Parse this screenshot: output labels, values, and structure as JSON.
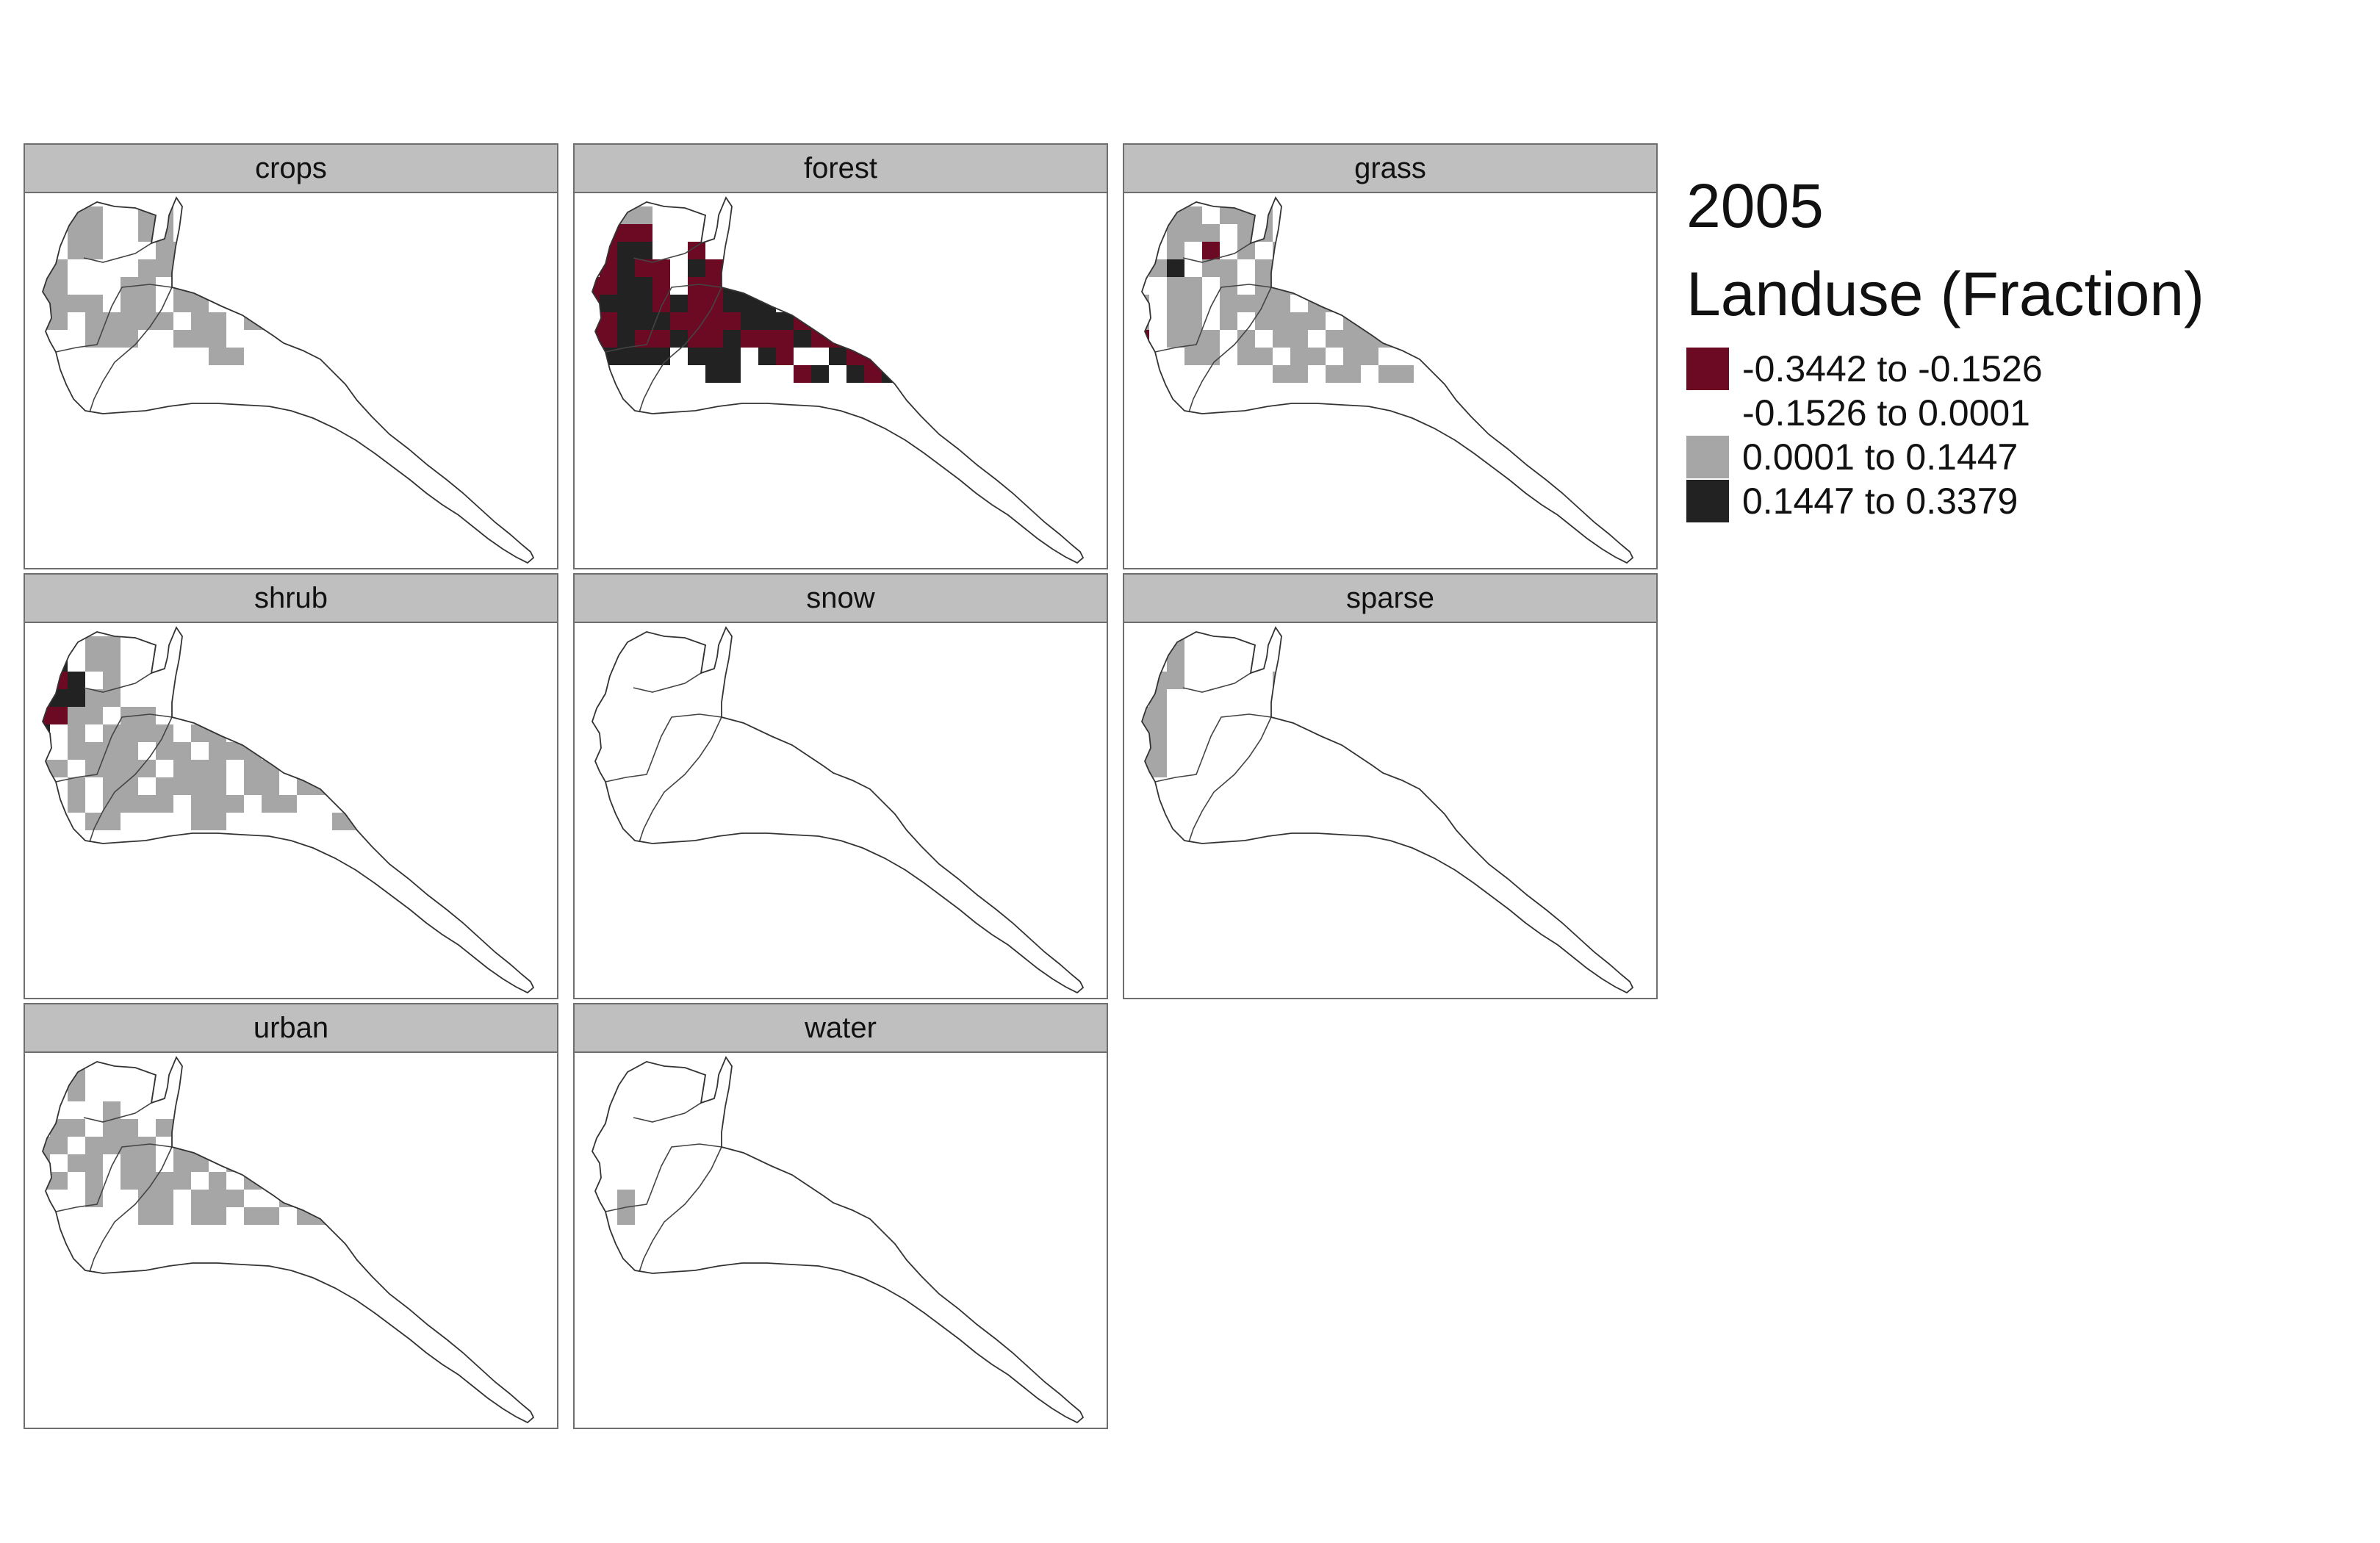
{
  "legend": {
    "year": "2005",
    "title": "Landuse (Fraction)",
    "classes": [
      {
        "label": "-0.3442 to -0.1526",
        "color": "#6b0a22"
      },
      {
        "label": "-0.1526 to 0.0001",
        "color": "#ffffff"
      },
      {
        "label": "0.0001 to 0.1447",
        "color": "#a6a6a6"
      },
      {
        "label": "0.1447 to 0.3379",
        "color": "#222222"
      }
    ]
  },
  "panels": [
    {
      "name": "crops"
    },
    {
      "name": "forest"
    },
    {
      "name": "grass"
    },
    {
      "name": "shrub"
    },
    {
      "name": "snow"
    },
    {
      "name": "sparse"
    },
    {
      "name": "urban"
    },
    {
      "name": "water"
    }
  ]
}
